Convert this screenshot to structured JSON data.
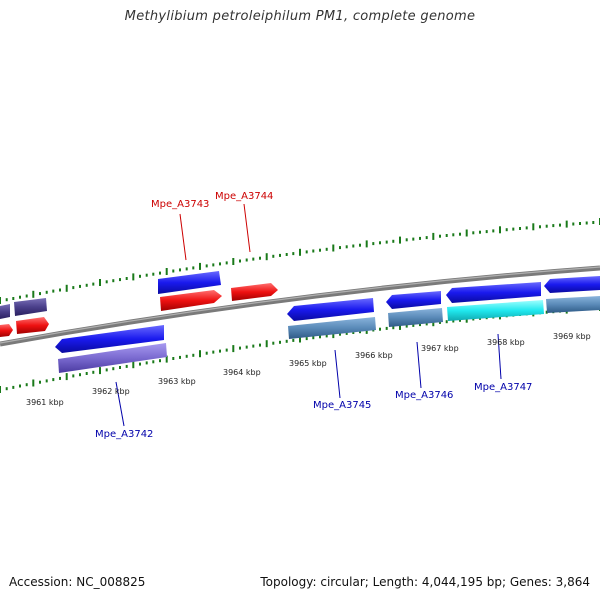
{
  "title": "Methylibium petroleiphilum PM1, complete genome",
  "footer": {
    "accession": "Accession: NC_008825",
    "summary": "Topology: circular; Length: 4,044,195 bp; Genes: 3,864"
  },
  "scale_labels": [
    "3961 kbp",
    "3962 kbp",
    "3963 kbp",
    "3964 kbp",
    "3965 kbp",
    "3966 kbp",
    "3967 kbp",
    "3968 kbp",
    "3969 kbp"
  ],
  "gene_labels": {
    "forward": [
      {
        "name": "Mpe_A3743",
        "color": "#cc0000"
      },
      {
        "name": "Mpe_A3744",
        "color": "#cc0000"
      }
    ],
    "reverse": [
      {
        "name": "Mpe_A3742",
        "color": "#0000aa"
      },
      {
        "name": "Mpe_A3745",
        "color": "#0000aa"
      },
      {
        "name": "Mpe_A3746",
        "color": "#0000aa"
      },
      {
        "name": "Mpe_A3747",
        "color": "#0000aa"
      }
    ]
  },
  "colors": {
    "backbone": "#808080",
    "cds_blue": "#1a1aee",
    "cds_red": "#ee1111",
    "purple_feature": "#7a6ad0",
    "steel_feature": "#5a8ab8",
    "cyan_feature": "#20e8ee",
    "dark_purple": "#4a3f8a",
    "tick": "#1a7a1a",
    "label_red": "#cc0000",
    "label_blue": "#0000aa"
  }
}
